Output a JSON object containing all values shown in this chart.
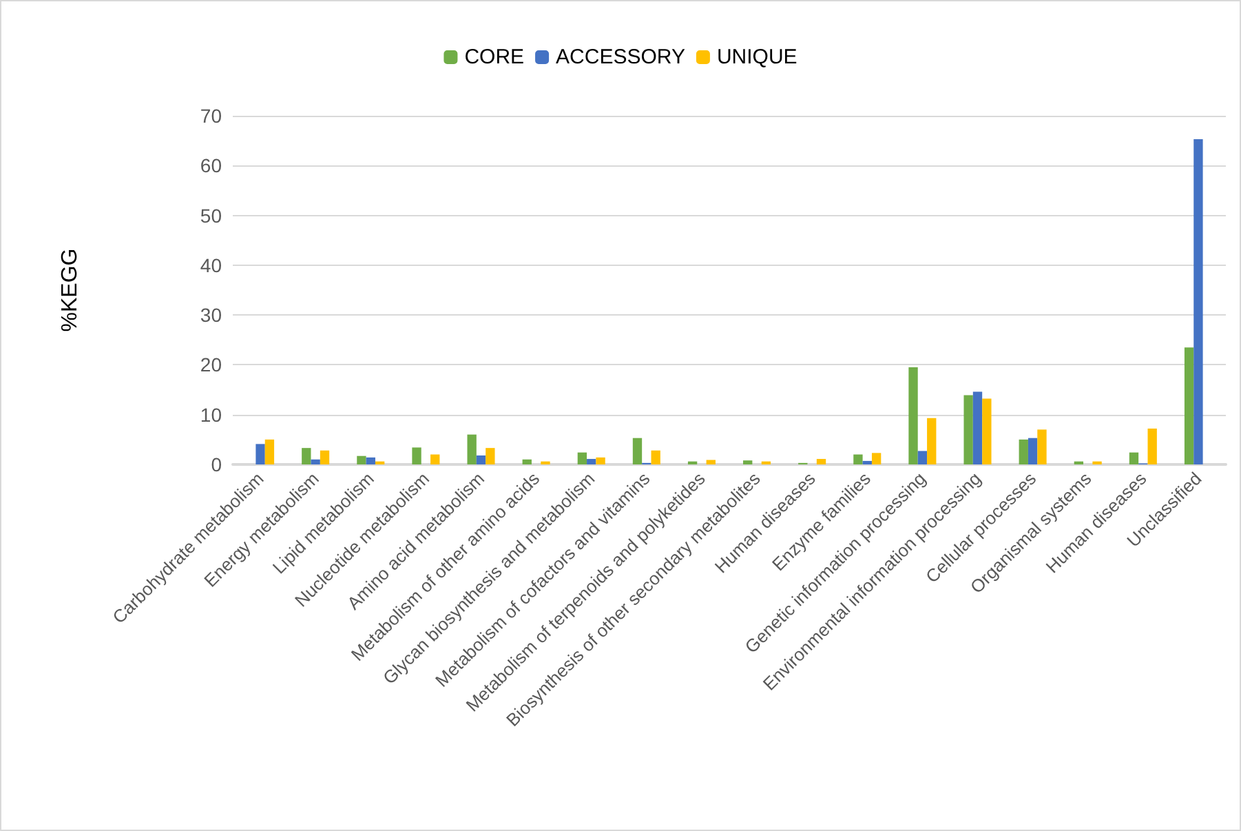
{
  "chart_data": {
    "type": "bar",
    "ylabel": "%KEGG",
    "categories": [
      "Carbohydrate metabolism",
      "Energy metabolism",
      "Lipid metabolism",
      "Nucleotide metabolism",
      "Amino acid metabolism",
      "Metabolism of other amino acids",
      "Glycan biosynthesis and metabolism",
      "Metabolism of cofactors and vitamins",
      "Metabolism of terpenoids and polyketides",
      "Biosynthesis of other secondary metabolites",
      "Human diseases",
      "Enzyme families",
      "Genetic information processing",
      "Environmental information processing",
      "Cellular processes",
      "Organismal systems",
      "Human diseases",
      "Unclassified"
    ],
    "series": [
      {
        "name": "CORE",
        "color": "#70ad47",
        "values": [
          null,
          3.3,
          1.7,
          3.4,
          6.0,
          1.0,
          2.4,
          5.3,
          0.6,
          0.8,
          0.3,
          2.0,
          19.5,
          13.9,
          5.0,
          0.6,
          2.4,
          23.5
        ]
      },
      {
        "name": "ACCESSORY",
        "color": "#4472c4",
        "values": [
          4.1,
          1.0,
          1.4,
          0,
          1.8,
          0,
          1.1,
          0.3,
          0,
          0,
          0,
          0.7,
          2.7,
          14.6,
          5.3,
          0,
          0.2,
          65.3
        ]
      },
      {
        "name": "UNIQUE",
        "color": "#ffc000",
        "values": [
          5.0,
          2.8,
          0.6,
          2.0,
          3.3,
          0.6,
          1.4,
          2.8,
          0.9,
          0.6,
          1.1,
          2.3,
          9.3,
          13.2,
          7.0,
          0.6,
          7.2,
          null
        ]
      }
    ],
    "ylim": [
      0,
      70
    ],
    "yticks": [
      0,
      10,
      20,
      30,
      40,
      50,
      60,
      70
    ],
    "grid": "y",
    "legend": "top"
  }
}
